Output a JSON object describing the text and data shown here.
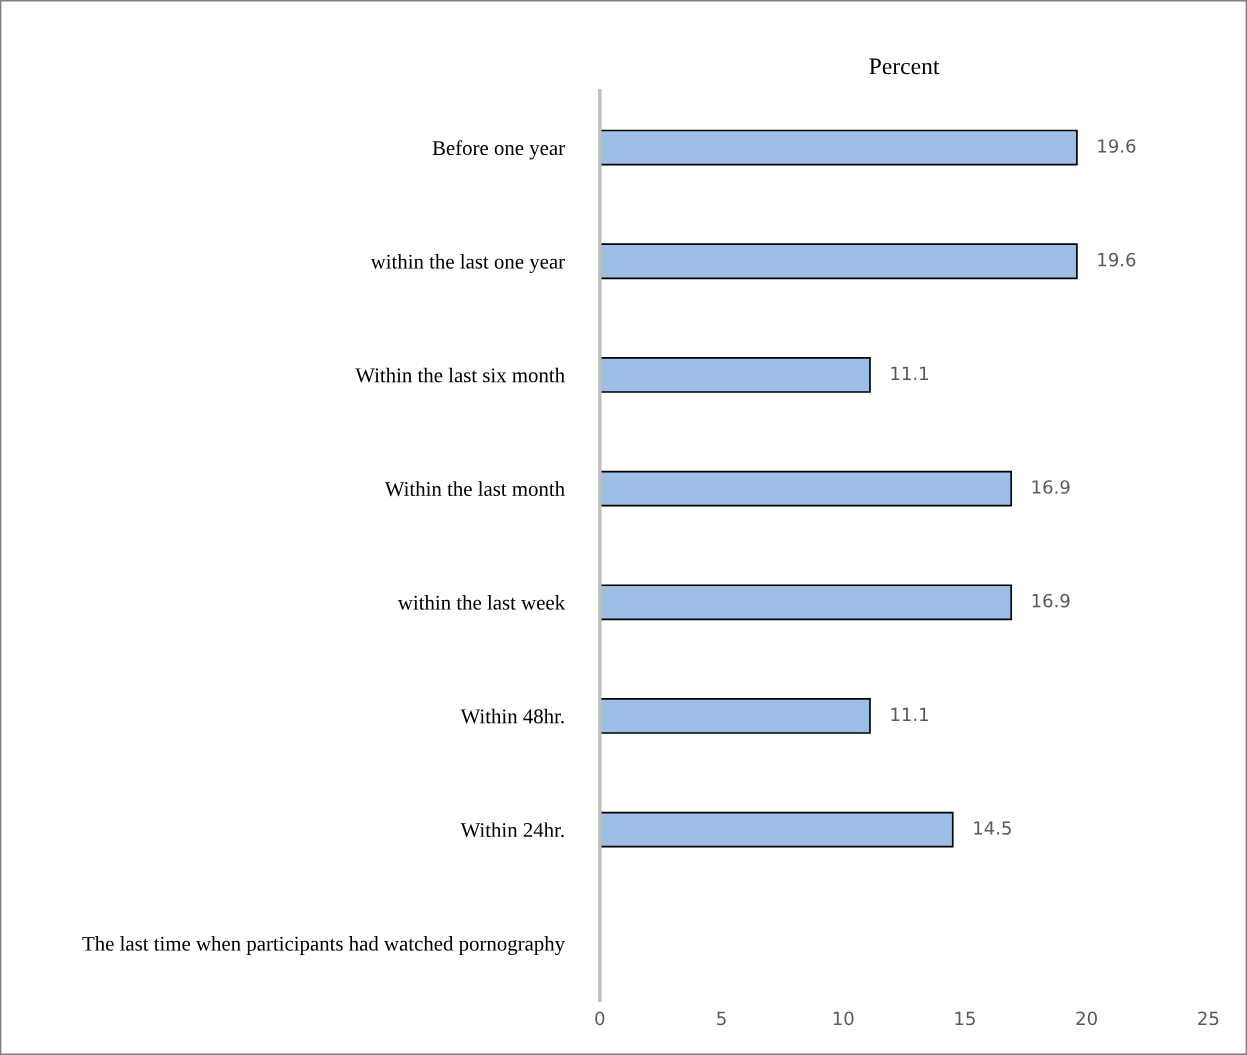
{
  "chart_data": {
    "type": "bar",
    "orientation": "horizontal",
    "xlabel": "Percent",
    "categories": [
      "Before one year",
      "within the last one year",
      "Within the last six month",
      "Within the last month",
      "within the last week",
      "Within 48hr.",
      "Within 24hr.",
      "The last time when participants had watched pornography"
    ],
    "values": [
      19.6,
      19.6,
      11.1,
      16.9,
      16.9,
      11.1,
      14.5,
      null
    ],
    "color": "#9dbfe6",
    "data_labels": true,
    "xlim": [
      0,
      25
    ],
    "xticks": [
      0,
      5,
      10,
      15,
      20,
      25
    ],
    "grid": false,
    "legend": false
  }
}
